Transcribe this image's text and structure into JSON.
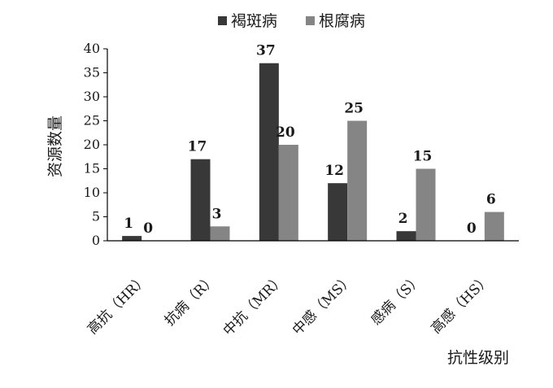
{
  "chart_data": {
    "type": "bar",
    "title": "",
    "xlabel": "抗性级别",
    "ylabel": "资源数量",
    "ylim": [
      0,
      40
    ],
    "yticks": [
      "0",
      "5",
      "10",
      "15",
      "20",
      "25",
      "30",
      "35",
      "40"
    ],
    "categories": [
      "高抗（HR）",
      "抗病（R）",
      "中抗（MR）",
      "中感（MS）",
      "感病（S）",
      "高感（HS）"
    ],
    "series": [
      {
        "name": "褐斑病",
        "color": "#383838",
        "values": [
          1,
          17,
          37,
          12,
          2,
          0
        ]
      },
      {
        "name": "根腐病",
        "color": "#858585",
        "values": [
          0,
          3,
          20,
          25,
          15,
          6
        ]
      }
    ],
    "grid": false,
    "legend_position": "top"
  }
}
